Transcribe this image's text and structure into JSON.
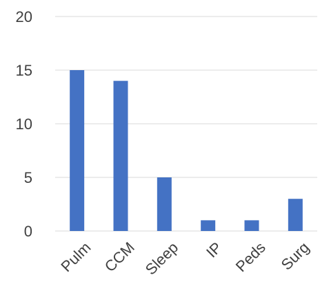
{
  "chart_data": {
    "type": "bar",
    "categories": [
      "Pulm",
      "CCM",
      "Sleep",
      "IP",
      "Peds",
      "Surg"
    ],
    "values": [
      15,
      14,
      5,
      1,
      1,
      3
    ],
    "title": "",
    "xlabel": "",
    "ylabel": "",
    "ylim": [
      0,
      20
    ],
    "yticks": [
      "0",
      "5",
      "10",
      "15",
      "20"
    ],
    "grid": true,
    "legend": "none",
    "bar_color": "#4472C4",
    "label_color": "#404040",
    "grid_color": "#d9d9d9"
  }
}
